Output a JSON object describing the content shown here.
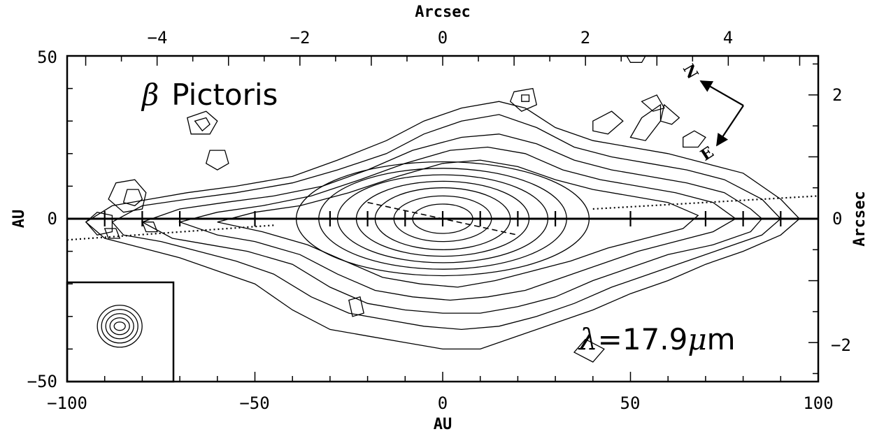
{
  "chart_data": {
    "type": "contour",
    "title": "",
    "annotations": {
      "object_symbol": "β",
      "object_name": "Pictoris",
      "wavelength_symbol": "λ",
      "wavelength_value": "=17.9",
      "wavelength_unit_mu": "μ",
      "wavelength_unit_m": "m"
    },
    "compass": {
      "north": "N",
      "east": "E"
    },
    "x_axis": {
      "label": "AU",
      "range": [
        -100,
        100
      ],
      "ticks": [
        "−100",
        "−50",
        "0",
        "50",
        "100"
      ],
      "tick_values": [
        -100,
        -50,
        0,
        50,
        100
      ]
    },
    "y_axis": {
      "label": "AU",
      "range": [
        -50,
        50
      ],
      "ticks": [
        "−50",
        "0",
        "50"
      ],
      "tick_values": [
        -50,
        0,
        50
      ]
    },
    "x2_axis": {
      "label": "Arcsec",
      "range": [
        -5.26,
        5.26
      ],
      "ticks": [
        "−4",
        "−2",
        "0",
        "2",
        "4"
      ],
      "tick_values": [
        -4,
        -2,
        0,
        2,
        4
      ]
    },
    "y2_axis": {
      "label": "Arcsec",
      "range": [
        -2.63,
        2.63
      ],
      "ticks": [
        "−2",
        "0",
        "2"
      ],
      "tick_values": [
        -2,
        0,
        2
      ]
    },
    "midplane_marks_au": [
      -90,
      -80,
      -70,
      -50,
      -30,
      -20,
      -10,
      0,
      10,
      20,
      30,
      50,
      70,
      80,
      90
    ],
    "core_levels": [
      {
        "a": 8,
        "b": 4.5
      },
      {
        "a": 13,
        "b": 7
      },
      {
        "a": 18,
        "b": 9.5
      },
      {
        "a": 23,
        "b": 11.5
      },
      {
        "a": 28,
        "b": 13.5
      },
      {
        "a": 33,
        "b": 15.5
      },
      {
        "a": 39,
        "b": 17.5
      }
    ],
    "outer_contours": [
      [
        [
          -95,
          -1
        ],
        [
          -88,
          4
        ],
        [
          -78,
          6
        ],
        [
          -68,
          8
        ],
        [
          -55,
          10
        ],
        [
          -40,
          13
        ],
        [
          -28,
          18
        ],
        [
          -15,
          24
        ],
        [
          -5,
          30
        ],
        [
          5,
          34
        ],
        [
          15,
          36
        ],
        [
          22,
          34
        ],
        [
          30,
          28
        ],
        [
          40,
          24
        ],
        [
          50,
          22
        ],
        [
          60,
          20
        ],
        [
          70,
          17
        ],
        [
          80,
          14
        ],
        [
          90,
          6
        ],
        [
          95,
          0
        ],
        [
          90,
          -5
        ],
        [
          80,
          -10
        ],
        [
          70,
          -14
        ],
        [
          60,
          -19
        ],
        [
          50,
          -23
        ],
        [
          40,
          -28
        ],
        [
          30,
          -32
        ],
        [
          20,
          -36
        ],
        [
          10,
          -40
        ],
        [
          0,
          -40
        ],
        [
          -10,
          -38
        ],
        [
          -20,
          -36
        ],
        [
          -30,
          -34
        ],
        [
          -40,
          -28
        ],
        [
          -50,
          -20
        ],
        [
          -60,
          -16
        ],
        [
          -70,
          -12
        ],
        [
          -80,
          -9
        ],
        [
          -90,
          -6
        ]
      ],
      [
        [
          -88,
          -1
        ],
        [
          -80,
          4
        ],
        [
          -68,
          6
        ],
        [
          -55,
          8
        ],
        [
          -40,
          11
        ],
        [
          -28,
          15
        ],
        [
          -15,
          20
        ],
        [
          -5,
          26
        ],
        [
          5,
          30
        ],
        [
          15,
          32
        ],
        [
          25,
          28
        ],
        [
          35,
          22
        ],
        [
          45,
          19
        ],
        [
          55,
          17
        ],
        [
          65,
          15
        ],
        [
          75,
          12
        ],
        [
          85,
          6
        ],
        [
          90,
          0
        ],
        [
          85,
          -5
        ],
        [
          75,
          -9
        ],
        [
          65,
          -13
        ],
        [
          55,
          -17
        ],
        [
          45,
          -21
        ],
        [
          35,
          -26
        ],
        [
          25,
          -30
        ],
        [
          15,
          -33
        ],
        [
          5,
          -34
        ],
        [
          -5,
          -33
        ],
        [
          -15,
          -31
        ],
        [
          -25,
          -29
        ],
        [
          -35,
          -24
        ],
        [
          -45,
          -17
        ],
        [
          -55,
          -13
        ],
        [
          -65,
          -10
        ],
        [
          -75,
          -7
        ],
        [
          -85,
          -5
        ]
      ],
      [
        [
          -80,
          -1
        ],
        [
          -70,
          3
        ],
        [
          -58,
          5
        ],
        [
          -45,
          7
        ],
        [
          -32,
          10
        ],
        [
          -20,
          15
        ],
        [
          -8,
          21
        ],
        [
          5,
          25
        ],
        [
          15,
          26
        ],
        [
          25,
          23
        ],
        [
          35,
          18
        ],
        [
          45,
          15
        ],
        [
          55,
          13
        ],
        [
          65,
          11
        ],
        [
          75,
          8
        ],
        [
          82,
          3
        ],
        [
          85,
          0
        ],
        [
          82,
          -4
        ],
        [
          72,
          -8
        ],
        [
          60,
          -11
        ],
        [
          50,
          -15
        ],
        [
          40,
          -19
        ],
        [
          30,
          -24
        ],
        [
          20,
          -27
        ],
        [
          10,
          -29
        ],
        [
          0,
          -29
        ],
        [
          -10,
          -28
        ],
        [
          -20,
          -26
        ],
        [
          -30,
          -21
        ],
        [
          -40,
          -14
        ],
        [
          -52,
          -10
        ],
        [
          -62,
          -8
        ],
        [
          -72,
          -6
        ]
      ],
      [
        [
          -70,
          -1
        ],
        [
          -60,
          2
        ],
        [
          -48,
          4
        ],
        [
          -35,
          7
        ],
        [
          -22,
          12
        ],
        [
          -10,
          17
        ],
        [
          2,
          21
        ],
        [
          12,
          22
        ],
        [
          22,
          20
        ],
        [
          32,
          15
        ],
        [
          42,
          12
        ],
        [
          52,
          10
        ],
        [
          62,
          8
        ],
        [
          72,
          5
        ],
        [
          78,
          0
        ],
        [
          72,
          -4
        ],
        [
          62,
          -7
        ],
        [
          52,
          -10
        ],
        [
          42,
          -14
        ],
        [
          32,
          -18
        ],
        [
          22,
          -22
        ],
        [
          12,
          -24
        ],
        [
          2,
          -25
        ],
        [
          -8,
          -24
        ],
        [
          -18,
          -22
        ],
        [
          -28,
          -17
        ],
        [
          -38,
          -11
        ],
        [
          -50,
          -7
        ],
        [
          -60,
          -5
        ]
      ],
      [
        [
          -60,
          -1
        ],
        [
          -50,
          2
        ],
        [
          -38,
          4
        ],
        [
          -25,
          8
        ],
        [
          -12,
          13
        ],
        [
          0,
          17
        ],
        [
          10,
          18
        ],
        [
          20,
          16
        ],
        [
          30,
          12
        ],
        [
          40,
          9
        ],
        [
          50,
          7
        ],
        [
          60,
          5
        ],
        [
          68,
          1
        ],
        [
          64,
          -3
        ],
        [
          54,
          -6
        ],
        [
          44,
          -9
        ],
        [
          34,
          -13
        ],
        [
          24,
          -16
        ],
        [
          14,
          -19
        ],
        [
          4,
          -21
        ],
        [
          -6,
          -20
        ],
        [
          -16,
          -18
        ],
        [
          -26,
          -13
        ],
        [
          -36,
          -8
        ],
        [
          -48,
          -4
        ]
      ]
    ],
    "islands": [
      [
        [
          -87,
          11
        ],
        [
          -82,
          12
        ],
        [
          -79,
          8
        ],
        [
          -80,
          3
        ],
        [
          -85,
          2
        ],
        [
          -89,
          6
        ]
      ],
      [
        [
          -84,
          9
        ],
        [
          -81,
          9
        ],
        [
          -80,
          6
        ],
        [
          -82,
          4
        ],
        [
          -85,
          5
        ]
      ],
      [
        [
          -95,
          -1
        ],
        [
          -92,
          2
        ],
        [
          -88,
          1
        ],
        [
          -88,
          -4
        ],
        [
          -92,
          -5
        ]
      ],
      [
        [
          -68,
          31
        ],
        [
          -63,
          33
        ],
        [
          -60,
          30
        ],
        [
          -62,
          26
        ],
        [
          -67,
          26
        ]
      ],
      [
        [
          -66,
          30
        ],
        [
          -63,
          31
        ],
        [
          -62,
          29
        ],
        [
          -64,
          27
        ]
      ],
      [
        [
          -62,
          21
        ],
        [
          -58,
          21
        ],
        [
          -57,
          17
        ],
        [
          -60,
          15
        ],
        [
          -63,
          17
        ]
      ],
      [
        [
          19,
          39
        ],
        [
          24,
          40
        ],
        [
          25,
          35
        ],
        [
          21,
          33
        ],
        [
          18,
          36
        ]
      ],
      [
        [
          21,
          38
        ],
        [
          23,
          38
        ],
        [
          23,
          36
        ],
        [
          21,
          36
        ]
      ],
      [
        [
          40,
          30
        ],
        [
          45,
          33
        ],
        [
          48,
          30
        ],
        [
          44,
          26
        ],
        [
          40,
          27
        ]
      ],
      [
        [
          50,
          25
        ],
        [
          53,
          31
        ],
        [
          58,
          35
        ],
        [
          58,
          30
        ],
        [
          54,
          24
        ]
      ],
      [
        [
          53,
          36
        ],
        [
          57,
          38
        ],
        [
          59,
          34
        ],
        [
          56,
          33
        ]
      ],
      [
        [
          59,
          35
        ],
        [
          61,
          33
        ],
        [
          63,
          31
        ],
        [
          61,
          29
        ],
        [
          58,
          30
        ]
      ],
      [
        [
          64,
          25
        ],
        [
          67,
          27
        ],
        [
          70,
          25
        ],
        [
          68,
          22
        ],
        [
          64,
          22
        ]
      ],
      [
        [
          38,
          -37
        ],
        [
          43,
          -40
        ],
        [
          40,
          -44
        ],
        [
          35,
          -41
        ]
      ],
      [
        [
          -25,
          -25
        ],
        [
          -22,
          -24
        ],
        [
          -21,
          -29
        ],
        [
          -24,
          -30
        ]
      ],
      [
        [
          -90,
          -3
        ],
        [
          -87,
          -3
        ],
        [
          -86,
          -6
        ],
        [
          -89,
          -6
        ]
      ],
      [
        [
          -80,
          -1
        ],
        [
          -77,
          -1
        ],
        [
          -76,
          -4
        ],
        [
          -79,
          -4
        ]
      ],
      [
        [
          50,
          48
        ],
        [
          53,
          48
        ],
        [
          54,
          50
        ],
        [
          49,
          50
        ]
      ]
    ],
    "inset_psf_levels": [
      2.5,
      5,
      7.5,
      10,
      12.5
    ],
    "dotted_lines": [
      {
        "from": [
          -100,
          -6.5
        ],
        "to": [
          -45,
          -2
        ]
      },
      {
        "from": [
          40,
          3
        ],
        "to": [
          100,
          7
        ]
      }
    ],
    "dashed_line": {
      "from": [
        -20,
        5
      ],
      "to": [
        20,
        -5
      ]
    }
  }
}
